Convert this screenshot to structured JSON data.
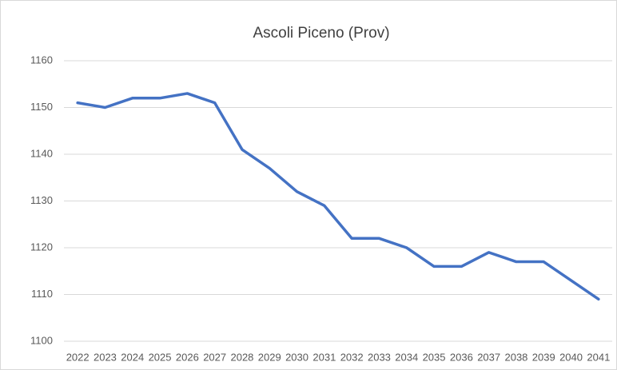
{
  "chart_data": {
    "type": "line",
    "title": "Ascoli Piceno (Prov)",
    "categories": [
      "2022",
      "2023",
      "2024",
      "2025",
      "2026",
      "2027",
      "2028",
      "2029",
      "2030",
      "2031",
      "2032",
      "2033",
      "2034",
      "2035",
      "2036",
      "2037",
      "2038",
      "2039",
      "2040",
      "2041"
    ],
    "series": [
      {
        "name": "Ascoli Piceno (Prov)",
        "color": "#4472c4",
        "values": [
          1151,
          1150,
          1152,
          1152,
          1153,
          1151,
          1141,
          1137,
          1132,
          1129,
          1122,
          1122,
          1120,
          1116,
          1116,
          1119,
          1117,
          1117,
          1113,
          1109
        ]
      }
    ],
    "ylim": [
      1100,
      1160
    ],
    "yticks": [
      1100,
      1110,
      1120,
      1130,
      1140,
      1150,
      1160
    ],
    "grid": true
  }
}
